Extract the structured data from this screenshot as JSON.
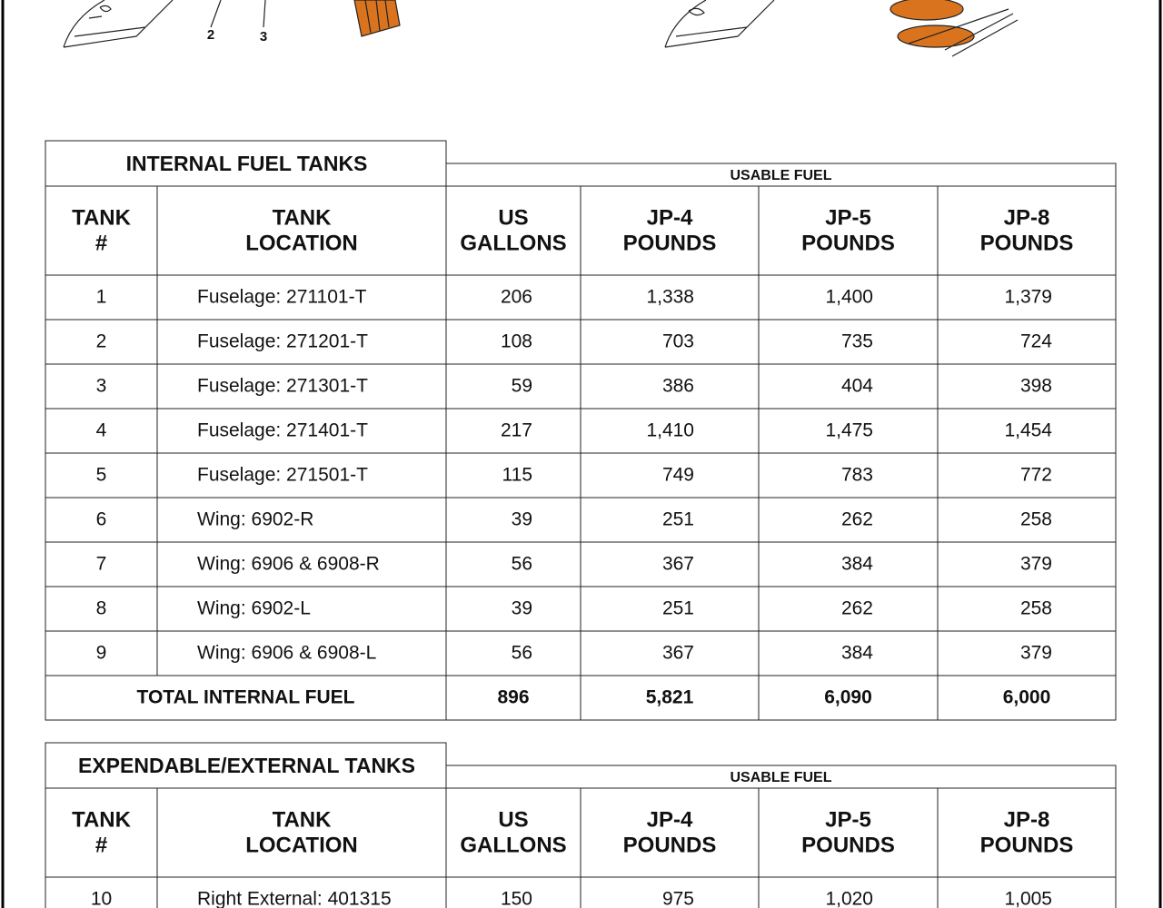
{
  "figure": {
    "callouts": [
      "2",
      "3"
    ]
  },
  "tables": [
    {
      "title": "INTERNAL FUEL TANKS",
      "group_header": "USABLE FUEL",
      "columns": [
        [
          "TANK",
          "#"
        ],
        [
          "TANK",
          "LOCATION"
        ],
        [
          "US",
          "GALLONS"
        ],
        [
          "JP-4",
          "POUNDS"
        ],
        [
          "JP-5",
          "POUNDS"
        ],
        [
          "JP-8",
          "POUNDS"
        ]
      ],
      "rows": [
        [
          "1",
          "Fuselage: 271101-T",
          "206",
          "1,338",
          "1,400",
          "1,379"
        ],
        [
          "2",
          "Fuselage: 271201-T",
          "108",
          "703",
          "735",
          "724"
        ],
        [
          "3",
          "Fuselage: 271301-T",
          "59",
          "386",
          "404",
          "398"
        ],
        [
          "4",
          "Fuselage: 271401-T",
          "217",
          "1,410",
          "1,475",
          "1,454"
        ],
        [
          "5",
          "Fuselage: 271501-T",
          "115",
          "749",
          "783",
          "772"
        ],
        [
          "6",
          "Wing: 6902-R",
          "39",
          "251",
          "262",
          "258"
        ],
        [
          "7",
          "Wing: 6906 & 6908-R",
          "56",
          "367",
          "384",
          "379"
        ],
        [
          "8",
          "Wing: 6902-L",
          "39",
          "251",
          "262",
          "258"
        ],
        [
          "9",
          "Wing: 6906 & 6908-L",
          "56",
          "367",
          "384",
          "379"
        ]
      ],
      "total": {
        "label": "TOTAL INTERNAL FUEL",
        "values": [
          "896",
          "5,821",
          "6,090",
          "6,000"
        ]
      }
    },
    {
      "title": "EXPENDABLE/EXTERNAL TANKS",
      "group_header": "USABLE FUEL",
      "columns": [
        [
          "TANK",
          "#"
        ],
        [
          "TANK",
          "LOCATION"
        ],
        [
          "US",
          "GALLONS"
        ],
        [
          "JP-4",
          "POUNDS"
        ],
        [
          "JP-5",
          "POUNDS"
        ],
        [
          "JP-8",
          "POUNDS"
        ]
      ],
      "rows": [
        [
          "10",
          "Right External: 401315",
          "150",
          "975",
          "1,020",
          "1,005"
        ]
      ]
    }
  ]
}
